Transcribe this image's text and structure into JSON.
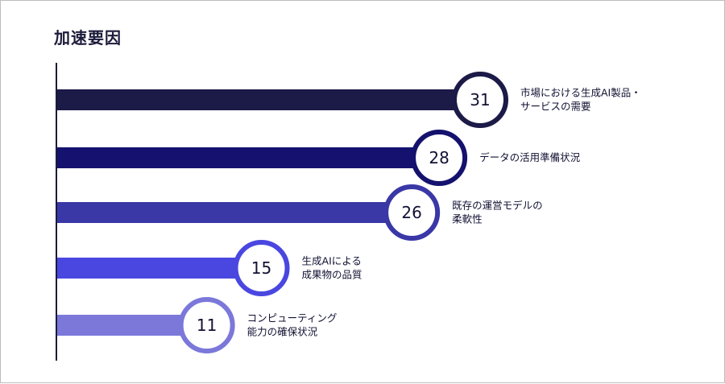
{
  "title": "加速要因",
  "chart_data": {
    "type": "bar",
    "orientation": "horizontal",
    "categories": [
      "市場における生成AI製品・サービスの需要",
      "データの活用準備状況",
      "既存の運営モデルの柔軟性",
      "生成AIによる成果物の品質",
      "コンピューティング能力の確保状況"
    ],
    "label_lines": [
      [
        "市場における生成AI製品・",
        "サービスの需要"
      ],
      [
        "データの活用準備状況"
      ],
      [
        "既存の運営モデルの",
        "柔軟性"
      ],
      [
        "生成AIによる",
        "成果物の品質"
      ],
      [
        "コンピューティング",
        "能力の確保状況"
      ]
    ],
    "values": [
      31,
      28,
      26,
      15,
      11
    ],
    "colors": [
      "#1c1a47",
      "#14126e",
      "#3a37a6",
      "#4a47e0",
      "#7b78da"
    ],
    "xlim": [
      0,
      31
    ]
  }
}
